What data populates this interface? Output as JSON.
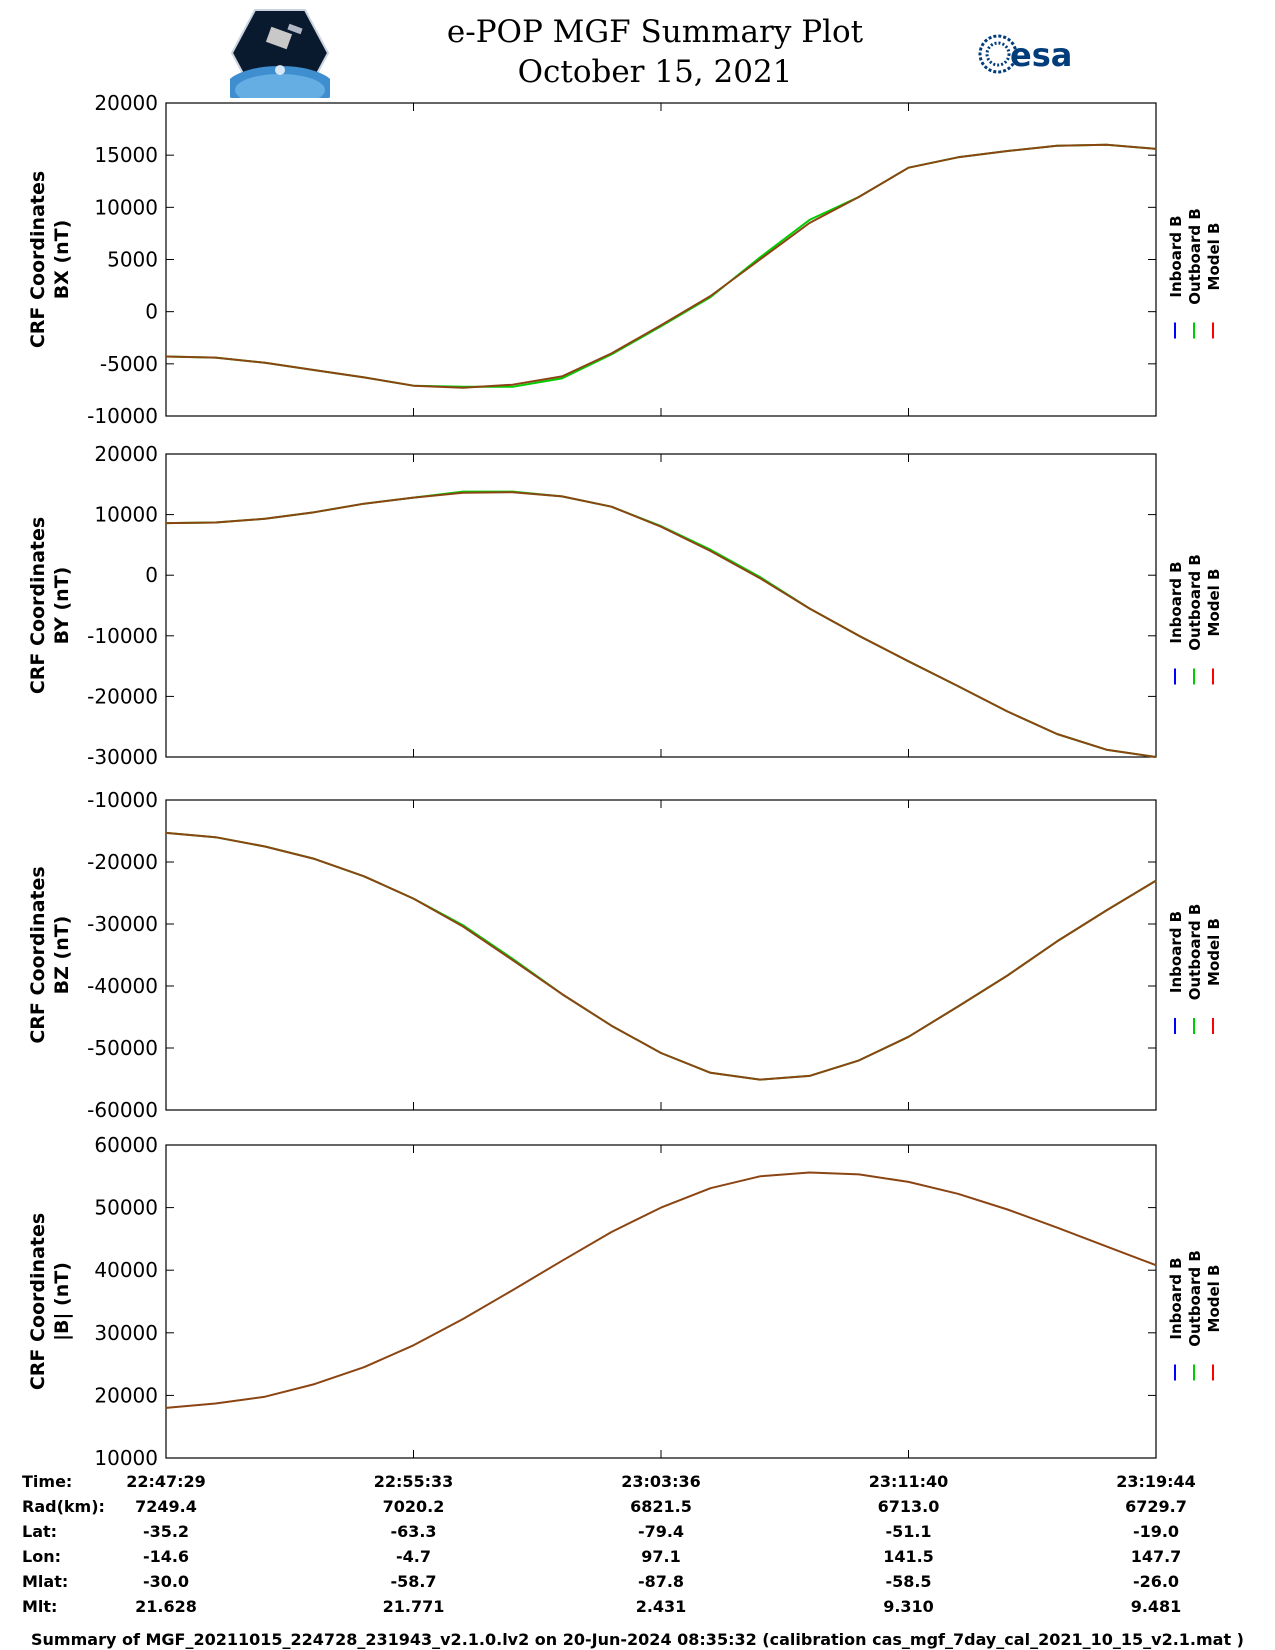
{
  "header": {
    "title": "e-POP MGF Summary Plot",
    "date": "October 15, 2021",
    "left_logo": "cassiope-satellite-logo",
    "right_logo": "esa-logo",
    "right_logo_text": "esa"
  },
  "colors": {
    "inboard": "#0000ff",
    "outboard": "#00cc00",
    "model": "#ff0000",
    "trace_overlap": "#8b4513"
  },
  "legend": [
    "Inboard B",
    "Outboard B",
    "Model B"
  ],
  "chart_data": [
    {
      "type": "line",
      "title": "",
      "ylabel": [
        "CRF Coordinates",
        "BX (nT)"
      ],
      "ylim": [
        -10000,
        20000
      ],
      "yticks": [
        "20000",
        "15000",
        "10000",
        "5000",
        "0",
        "-5000",
        "-10000"
      ],
      "x": [
        0,
        0.05,
        0.1,
        0.15,
        0.2,
        0.25,
        0.3,
        0.35,
        0.4,
        0.45,
        0.5,
        0.55,
        0.6,
        0.65,
        0.7,
        0.75,
        0.8,
        0.85,
        0.9,
        0.95,
        1.0
      ],
      "series": [
        {
          "name": "Model B",
          "values": [
            -4300,
            -4400,
            -4900,
            -5600,
            -6300,
            -7100,
            -7300,
            -7000,
            -6200,
            -4000,
            -1300,
            1500,
            5000,
            8500,
            11000,
            13800,
            14800,
            15400,
            15900,
            16000,
            15600
          ]
        },
        {
          "name": "Outboard B",
          "values": [
            -4300,
            -4400,
            -4900,
            -5600,
            -6300,
            -7100,
            -7200,
            -7200,
            -6400,
            -4100,
            -1400,
            1400,
            5200,
            8800,
            11000,
            13800,
            14800,
            15400,
            15900,
            16000,
            15600
          ]
        }
      ]
    },
    {
      "type": "line",
      "title": "",
      "ylabel": [
        "CRF Coordinates",
        "BY (nT)"
      ],
      "ylim": [
        -30000,
        20000
      ],
      "yticks": [
        "20000",
        "10000",
        "0",
        "-10000",
        "-20000",
        "-30000"
      ],
      "x": [
        0,
        0.05,
        0.1,
        0.15,
        0.2,
        0.25,
        0.3,
        0.35,
        0.4,
        0.45,
        0.5,
        0.55,
        0.6,
        0.65,
        0.7,
        0.75,
        0.8,
        0.85,
        0.9,
        0.95,
        1.0
      ],
      "series": [
        {
          "name": "Model B",
          "values": [
            8600,
            8700,
            9300,
            10400,
            11800,
            12800,
            13600,
            13700,
            13000,
            11300,
            8000,
            4000,
            -500,
            -5500,
            -10000,
            -14200,
            -18300,
            -22500,
            -26200,
            -28800,
            -30000
          ]
        },
        {
          "name": "Outboard B",
          "values": [
            8600,
            8700,
            9300,
            10400,
            11800,
            12800,
            13800,
            13800,
            13000,
            11300,
            8100,
            4200,
            -300,
            -5500,
            -10000,
            -14200,
            -18300,
            -22500,
            -26200,
            -28800,
            -30000
          ]
        }
      ]
    },
    {
      "type": "line",
      "title": "",
      "ylabel": [
        "CRF Coordinates",
        "BZ (nT)"
      ],
      "ylim": [
        -60000,
        -10000
      ],
      "yticks": [
        "-10000",
        "-20000",
        "-30000",
        "-40000",
        "-50000",
        "-60000"
      ],
      "x": [
        0,
        0.05,
        0.1,
        0.15,
        0.2,
        0.25,
        0.3,
        0.35,
        0.4,
        0.45,
        0.5,
        0.55,
        0.6,
        0.65,
        0.7,
        0.75,
        0.8,
        0.85,
        0.9,
        0.95,
        1.0
      ],
      "series": [
        {
          "name": "Model B",
          "values": [
            -15300,
            -16000,
            -17500,
            -19500,
            -22300,
            -25900,
            -30400,
            -35800,
            -41300,
            -46400,
            -50800,
            -54000,
            -55100,
            -54500,
            -52000,
            -48200,
            -43300,
            -38300,
            -32800,
            -27800,
            -23000
          ]
        },
        {
          "name": "Outboard B",
          "values": [
            -15300,
            -16000,
            -17500,
            -19500,
            -22300,
            -25900,
            -30200,
            -35600,
            -41300,
            -46400,
            -50800,
            -54000,
            -55100,
            -54500,
            -52000,
            -48200,
            -43300,
            -38300,
            -32800,
            -27800,
            -23000
          ]
        }
      ]
    },
    {
      "type": "line",
      "title": "",
      "ylabel": [
        "CRF Coordinates",
        "|B| (nT)"
      ],
      "ylim": [
        10000,
        60000
      ],
      "yticks": [
        "60000",
        "50000",
        "40000",
        "30000",
        "20000",
        "10000"
      ],
      "x": [
        0,
        0.05,
        0.1,
        0.15,
        0.2,
        0.25,
        0.3,
        0.35,
        0.4,
        0.45,
        0.5,
        0.55,
        0.6,
        0.65,
        0.7,
        0.75,
        0.8,
        0.85,
        0.9,
        0.95,
        1.0
      ],
      "series": [
        {
          "name": "Model B",
          "values": [
            18000,
            18700,
            19800,
            21800,
            24500,
            28000,
            32200,
            36800,
            41500,
            46100,
            50000,
            53100,
            55000,
            55600,
            55300,
            54100,
            52200,
            49700,
            46800,
            43800,
            40800
          ]
        }
      ]
    }
  ],
  "x_axis": {
    "row_labels": [
      "Time:",
      "Rad(km):",
      "Lat:",
      "Lon:",
      "Mlat:",
      "Mlt:"
    ],
    "columns": [
      [
        "22:47:29",
        "7249.4",
        "-35.2",
        "-14.6",
        "-30.0",
        "21.628"
      ],
      [
        "22:55:33",
        "7020.2",
        "-63.3",
        "-4.7",
        "-58.7",
        "21.771"
      ],
      [
        "23:03:36",
        "6821.5",
        "-79.4",
        "97.1",
        "-87.8",
        "2.431"
      ],
      [
        "23:11:40",
        "6713.0",
        "-51.1",
        "141.5",
        "-58.5",
        "9.310"
      ],
      [
        "23:19:44",
        "6729.7",
        "-19.0",
        "147.7",
        "-26.0",
        "9.481"
      ]
    ]
  },
  "footer": "Summary of MGF_20211015_224728_231943_v2.1.0.lv2 on 20-Jun-2024 08:35:32 (calibration cas_mgf_7day_cal_2021_10_15_v2.1.mat )"
}
